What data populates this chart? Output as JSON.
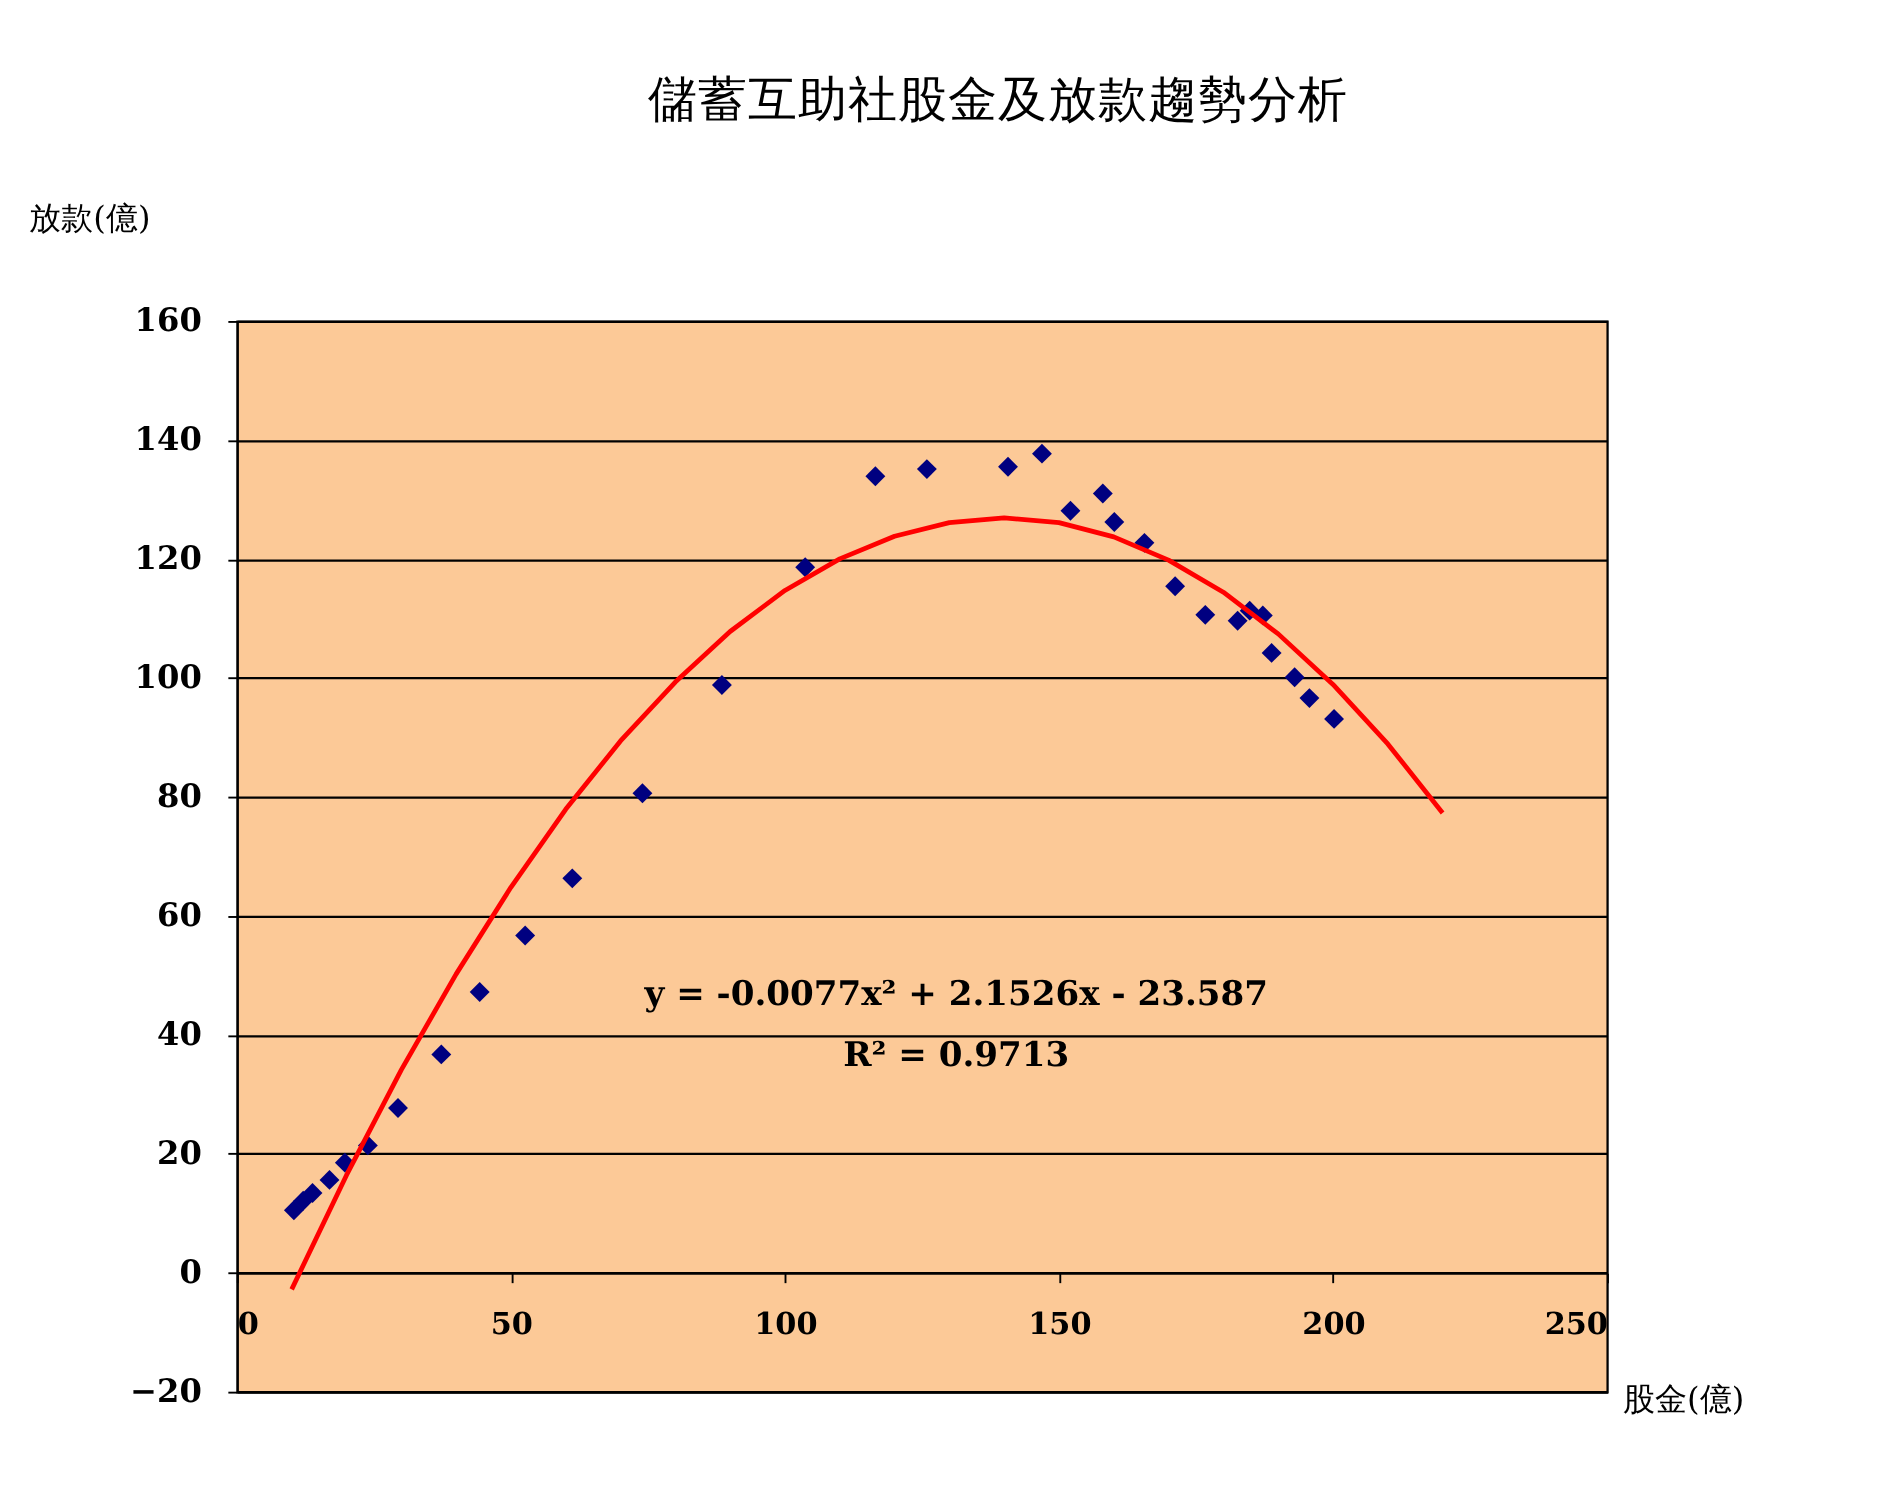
{
  "chart_data": {
    "type": "scatter",
    "title": "儲蓄互助社股金及放款趨勢分析",
    "xlabel": "股金(億)",
    "ylabel": "放款(億)",
    "xlim": [
      0,
      250
    ],
    "xticks": [
      0,
      50,
      100,
      150,
      200,
      250
    ],
    "ylim": [
      -20,
      160
    ],
    "yticks": [
      -20,
      0,
      20,
      40,
      60,
      80,
      100,
      120,
      140,
      160
    ],
    "grid": "y",
    "series": [
      {
        "color": "#000080",
        "marker": "diamond",
        "x": [
          10.4,
          12.1,
          13.8,
          16.9,
          19.7,
          23.9,
          29.4,
          37.3,
          44.3,
          52.6,
          61.2,
          74.0,
          88.5,
          103.7,
          116.5,
          125.9,
          140.7,
          146.9,
          152.1,
          158.0,
          160.1,
          165.6,
          171.2,
          176.7,
          182.6,
          184.8,
          187.2,
          188.8,
          193.0,
          195.7,
          200.2
        ],
        "values": [
          10.5,
          12.1,
          13.4,
          15.6,
          18.5,
          21.4,
          27.7,
          36.7,
          47.2,
          56.7,
          66.3,
          80.6,
          98.8,
          118.6,
          133.9,
          135.1,
          135.5,
          137.7,
          128.1,
          131.0,
          126.2,
          122.7,
          115.4,
          110.6,
          109.6,
          111.3,
          110.5,
          104.2,
          100.1,
          96.6,
          93.1
        ]
      },
      {
        "type": "line",
        "marker": "none",
        "color": "#ff0000",
        "line_style": "solid",
        "x": [
          10,
          20,
          30,
          40,
          50,
          60,
          70,
          80,
          90,
          100,
          110,
          120,
          130,
          140,
          150,
          160,
          170,
          180,
          190,
          200,
          210,
          220
        ],
        "values": [
          -2.8,
          16.4,
          34.1,
          50.2,
          64.8,
          77.9,
          89.4,
          99.3,
          107.8,
          114.7,
          120.0,
          123.8,
          126.1,
          126.9,
          126.1,
          123.7,
          119.8,
          114.4,
          107.4,
          98.9,
          88.9,
          77.3
        ]
      }
    ],
    "annotations": [
      "y = -0.0077x² + 2.1526x - 23.587",
      "R² = 0.9713"
    ]
  }
}
